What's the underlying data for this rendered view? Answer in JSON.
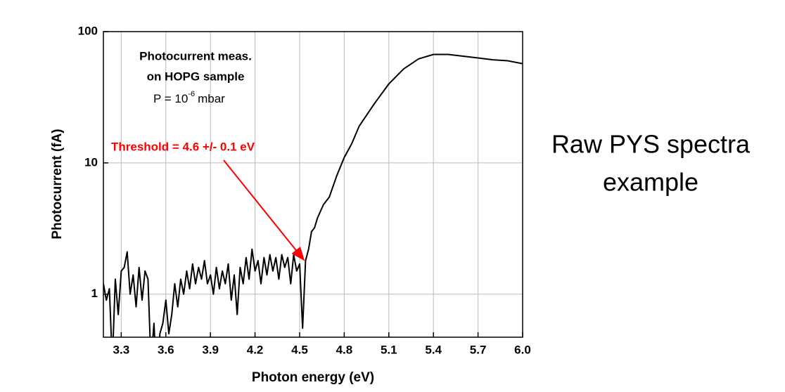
{
  "chart_data": {
    "type": "line",
    "xlabel": "Photon energy (eV)",
    "ylabel": "Photocurrent (fA)",
    "note_lines": [
      "Photocurrent meas.",
      "on HOPG sample"
    ],
    "pressure": {
      "text": "P = 10",
      "exponent": "-6",
      "unit": "mbar"
    },
    "threshold_label": "Threshold = 4.6 +/- 0.1 eV",
    "color": "#000000",
    "log_y": true,
    "grid": true,
    "xlim": [
      3.18,
      6.0
    ],
    "xticks": [
      3.3,
      3.6,
      3.9,
      4.2,
      4.5,
      4.8,
      5.1,
      5.4,
      5.7,
      {
        "value": 6,
        "label": "6.0"
      }
    ],
    "ylim": [
      0.47,
      100
    ],
    "yticks": [
      1,
      10,
      100
    ],
    "x": [
      3.18,
      3.2,
      3.22,
      3.24,
      3.26,
      3.28,
      3.3,
      3.32,
      3.34,
      3.36,
      3.38,
      3.4,
      3.42,
      3.44,
      3.46,
      3.48,
      3.5,
      3.52,
      3.54,
      3.56,
      3.58,
      3.6,
      3.62,
      3.64,
      3.66,
      3.68,
      3.7,
      3.72,
      3.74,
      3.76,
      3.78,
      3.8,
      3.82,
      3.84,
      3.86,
      3.88,
      3.9,
      3.92,
      3.94,
      3.96,
      3.98,
      4.0,
      4.02,
      4.04,
      4.06,
      4.08,
      4.1,
      4.12,
      4.14,
      4.16,
      4.18,
      4.2,
      4.22,
      4.24,
      4.26,
      4.28,
      4.3,
      4.32,
      4.34,
      4.36,
      4.38,
      4.4,
      4.42,
      4.44,
      4.46,
      4.48,
      4.5,
      4.52,
      4.54,
      4.56,
      4.58,
      4.6,
      4.62,
      4.66,
      4.7,
      4.75,
      4.8,
      4.85,
      4.9,
      5.0,
      5.1,
      5.2,
      5.3,
      5.4,
      5.5,
      5.6,
      5.7,
      5.8,
      5.9,
      6.0
    ],
    "values": [
      1.2,
      0.9,
      1.1,
      0.3,
      1.3,
      0.7,
      1.5,
      1.6,
      2.1,
      1.0,
      1.4,
      0.8,
      1.6,
      0.9,
      1.5,
      1.3,
      0.3,
      0.6,
      0.2,
      0.5,
      0.6,
      0.9,
      0.5,
      0.7,
      1.2,
      0.8,
      1.3,
      1.0,
      1.5,
      1.1,
      1.7,
      1.2,
      1.6,
      1.3,
      1.8,
      1.2,
      1.4,
      1.0,
      1.6,
      1.1,
      1.5,
      1.2,
      1.7,
      0.9,
      1.4,
      0.7,
      1.6,
      1.2,
      1.9,
      1.3,
      2.2,
      1.5,
      1.8,
      1.2,
      1.9,
      1.4,
      2.0,
      1.5,
      1.9,
      1.3,
      2.0,
      1.6,
      1.9,
      1.2,
      2.0,
      1.5,
      1.7,
      0.55,
      1.8,
      2.2,
      3.0,
      3.2,
      3.8,
      4.8,
      5.5,
      8,
      11,
      14,
      19,
      28,
      40,
      52,
      62,
      67,
      67,
      65,
      63,
      61,
      60,
      57
    ]
  },
  "side_text": [
    "Raw PYS spectra",
    "example"
  ]
}
